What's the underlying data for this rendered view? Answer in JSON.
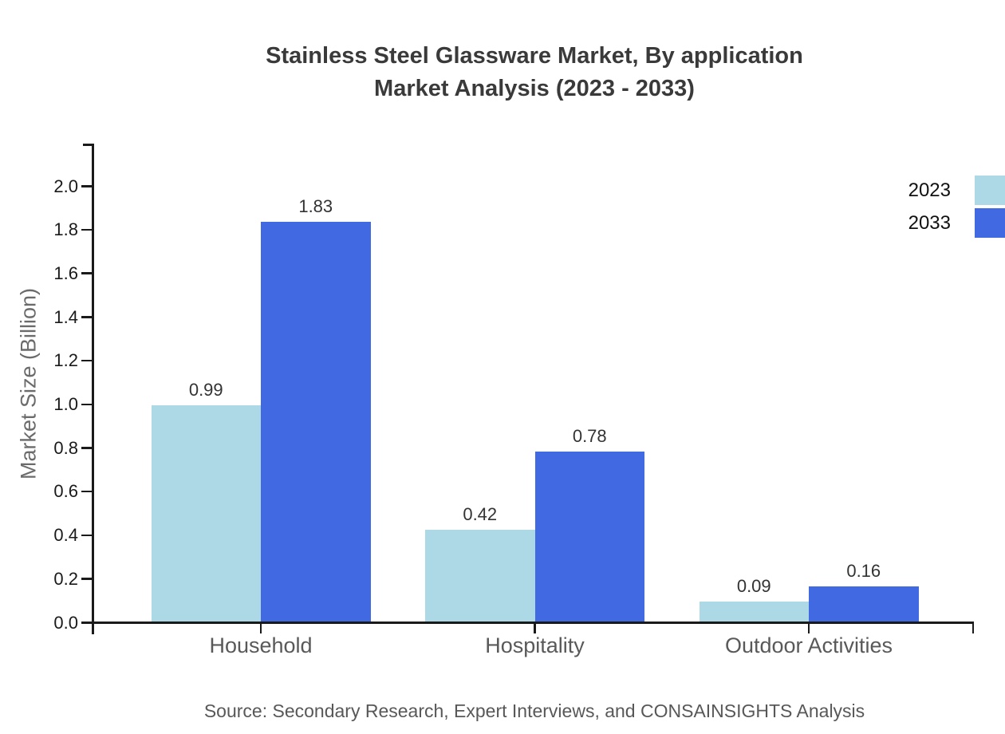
{
  "chart_data": {
    "type": "bar",
    "title_lines": [
      "Stainless Steel Glassware Market, By application",
      "Market Analysis (2023 - 2033)"
    ],
    "title": "Stainless Steel Glassware Market, By application Market Analysis (2023 - 2033)",
    "categories": [
      "Household",
      "Hospitality",
      "Outdoor Activities"
    ],
    "series": [
      {
        "name": "2023",
        "color": "#ADD8E6",
        "values": [
          0.99,
          0.42,
          0.09
        ]
      },
      {
        "name": "2033",
        "color": "#4169E1",
        "values": [
          1.83,
          0.78,
          0.16
        ]
      }
    ],
    "value_labels": [
      "0.99",
      "1.83",
      "0.42",
      "0.78",
      "0.09",
      "0.16"
    ],
    "xlabel": "",
    "ylabel": "Market Size (Billion)",
    "ylim": [
      0.0,
      2.0
    ],
    "ytick_step": 0.2,
    "ytick_labels": [
      "0.0",
      "0.2",
      "0.4",
      "0.6",
      "0.8",
      "1.0",
      "1.2",
      "1.4",
      "1.6",
      "1.8",
      "2.0"
    ],
    "grid": false,
    "legend_position": "top-right",
    "source": "Source: Secondary Research, Expert Interviews, and CONSAINSIGHTS Analysis",
    "colors": {
      "series_2023": "#ADD8E6",
      "series_2033": "#4169E1",
      "axis": "#1a1a1a",
      "title_text": "#3a3a3a",
      "label_text": "#595959"
    }
  }
}
